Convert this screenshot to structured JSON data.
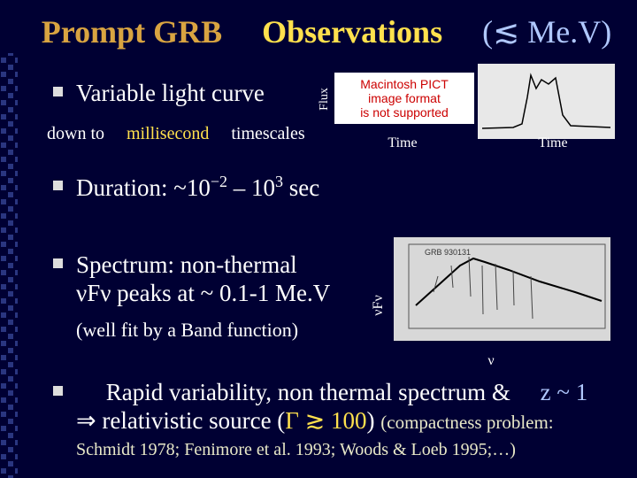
{
  "title": {
    "part1": "Prompt GRB",
    "part2": "Observations",
    "part3": "(≲ Me.V)"
  },
  "bullet1": {
    "text": "Variable light curve",
    "line2": [
      "down to",
      "millisecond",
      "timescales"
    ]
  },
  "lightcurve": {
    "flux_label": "Flux",
    "time_label": "Time",
    "time_label_2": "Time",
    "placeholder": [
      "Macintosh PICT",
      "image format",
      "is not supported"
    ]
  },
  "bullet2": {
    "text": [
      "Duration: ~10",
      "−2",
      " – 10",
      "3",
      " sec"
    ]
  },
  "bullet3": {
    "line1": "Spectrum: non-thermal",
    "line2": "νFν peaks at ~ 0.1-1 Me.V",
    "line3": "(well fit by a Band function)"
  },
  "spectrum": {
    "y_label": "νFν",
    "x_label": "ν",
    "grb_name": "GRB 930131"
  },
  "bullet4": {
    "line1": [
      "Rapid variability, non thermal spectrum &",
      "z ~ 1"
    ],
    "line2": [
      "⇒ relativistic source (",
      "Γ ≳ 100",
      ")",
      "(compactness problem:"
    ],
    "line3": "Schmidt 1978; Fenimore et al. 1993; Woods & Loeb 1995;…)"
  }
}
